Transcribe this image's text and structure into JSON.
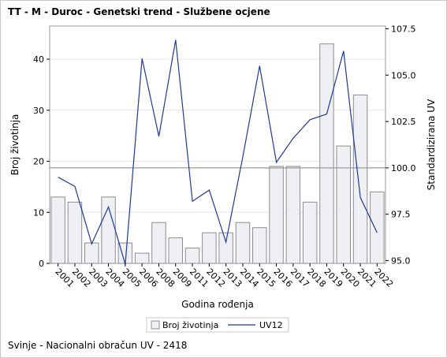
{
  "title": "TT - M - Duroc - Genetski trend - Službene ocjene",
  "footer": "Svinje - Nacionalni obračun UV - 2418",
  "colors": {
    "bar_fill": "#eef0f4",
    "bar_stroke": "#8a8d94",
    "line": "#1f3a93",
    "reference_line": "#9a9a9a",
    "grid": "#e6e6e6"
  },
  "chart_data": {
    "type": "bar",
    "title": "TT - M - Duroc - Genetski trend - Službene ocjene",
    "xlabel": "Godina rođenja",
    "ylabel": "Broj životinja",
    "y2label": "Standardizirana UV",
    "categories": [
      "2001",
      "2002",
      "2003",
      "2004",
      "2005",
      "2006",
      "2008",
      "2009",
      "2011",
      "2012",
      "2013",
      "2014",
      "2015",
      "2016",
      "2017",
      "2018",
      "2019",
      "2020",
      "2021",
      "2022"
    ],
    "series": [
      {
        "name": "Broj životinja",
        "type": "bar",
        "axis": "left",
        "values": [
          13,
          12,
          4,
          13,
          4,
          2,
          8,
          5,
          3,
          6,
          6,
          8,
          7,
          19,
          19,
          12,
          43,
          23,
          33,
          14
        ]
      },
      {
        "name": "UV12",
        "type": "line",
        "axis": "right",
        "values": [
          99.5,
          99.0,
          95.9,
          97.9,
          94.8,
          105.9,
          101.7,
          106.9,
          98.2,
          98.8,
          96.0,
          100.6,
          105.5,
          100.3,
          101.6,
          102.6,
          102.9,
          106.3,
          98.4,
          96.5
        ]
      }
    ],
    "ylim": [
      0,
      46.5
    ],
    "y2lim": [
      94.85,
      107.65
    ],
    "yticks": [
      0,
      10,
      20,
      30,
      40
    ],
    "y2ticks": [
      "95.0",
      "97.5",
      "100.0",
      "102.5",
      "105.0",
      "107.5"
    ],
    "reference_line_y2": 100.0,
    "grid": true,
    "legend": {
      "position": "bottom",
      "entries": [
        "Broj životinja",
        "UV12"
      ]
    }
  }
}
